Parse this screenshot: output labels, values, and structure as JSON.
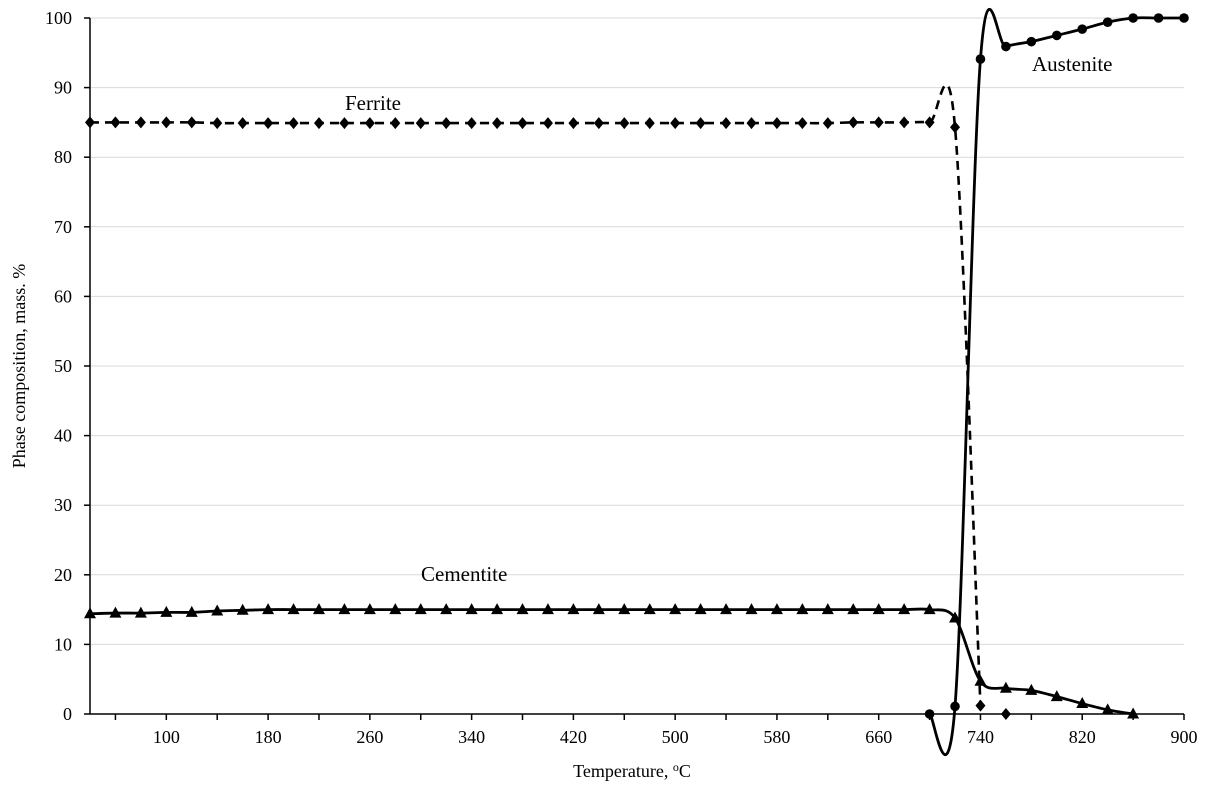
{
  "chart_data": {
    "type": "line",
    "xlabel": "Temperature, ",
    "xlabel_sup": "o",
    "xlabel_unit": "C",
    "ylabel": "Phase composition, mass. %",
    "xlim": [
      40,
      900
    ],
    "ylim": [
      0,
      100
    ],
    "x_ticks": [
      100,
      180,
      260,
      340,
      420,
      500,
      580,
      660,
      740,
      820,
      900
    ],
    "y_ticks": [
      0,
      10,
      20,
      30,
      40,
      50,
      60,
      70,
      80,
      90,
      100
    ],
    "grid": "horizontal",
    "series": [
      {
        "name": "Ferrite",
        "marker": "diamond",
        "line": "dashed",
        "x": [
          40,
          60,
          80,
          100,
          120,
          140,
          160,
          180,
          200,
          220,
          240,
          260,
          280,
          300,
          320,
          340,
          360,
          380,
          400,
          420,
          440,
          460,
          480,
          500,
          520,
          540,
          560,
          580,
          600,
          620,
          640,
          660,
          680,
          700,
          720,
          740,
          760
        ],
        "y": [
          85,
          85,
          85,
          85,
          85,
          84.9,
          84.9,
          84.9,
          84.9,
          84.9,
          84.9,
          84.9,
          84.9,
          84.9,
          84.9,
          84.9,
          84.9,
          84.9,
          84.9,
          84.9,
          84.9,
          84.9,
          84.9,
          84.9,
          84.9,
          84.9,
          84.9,
          84.9,
          84.9,
          84.9,
          85,
          85,
          85,
          85,
          84.3,
          1.2,
          0
        ]
      },
      {
        "name": "Cementite",
        "marker": "triangle",
        "line": "solid",
        "x": [
          40,
          60,
          80,
          100,
          120,
          140,
          160,
          180,
          200,
          220,
          240,
          260,
          280,
          300,
          320,
          340,
          360,
          380,
          400,
          420,
          440,
          460,
          480,
          500,
          520,
          540,
          560,
          580,
          600,
          620,
          640,
          660,
          680,
          700,
          720,
          740,
          760,
          780,
          800,
          820,
          840,
          860
        ],
        "y": [
          14.4,
          14.5,
          14.5,
          14.6,
          14.6,
          14.8,
          14.9,
          15,
          15,
          15,
          15,
          15,
          15,
          15,
          15,
          15,
          15,
          15,
          15,
          15,
          15,
          15,
          15,
          15,
          15,
          15,
          15,
          15,
          15,
          15,
          15,
          15,
          15,
          15,
          13.8,
          4.7,
          3.7,
          3.4,
          2.5,
          1.5,
          0.6,
          0
        ]
      },
      {
        "name": "Austenite",
        "marker": "circle",
        "line": "solid",
        "x": [
          700,
          720,
          740,
          760,
          780,
          800,
          820,
          840,
          860,
          880,
          900
        ],
        "y": [
          0,
          1.1,
          94.1,
          95.9,
          96.6,
          97.5,
          98.4,
          99.4,
          100,
          100,
          100
        ]
      }
    ]
  }
}
